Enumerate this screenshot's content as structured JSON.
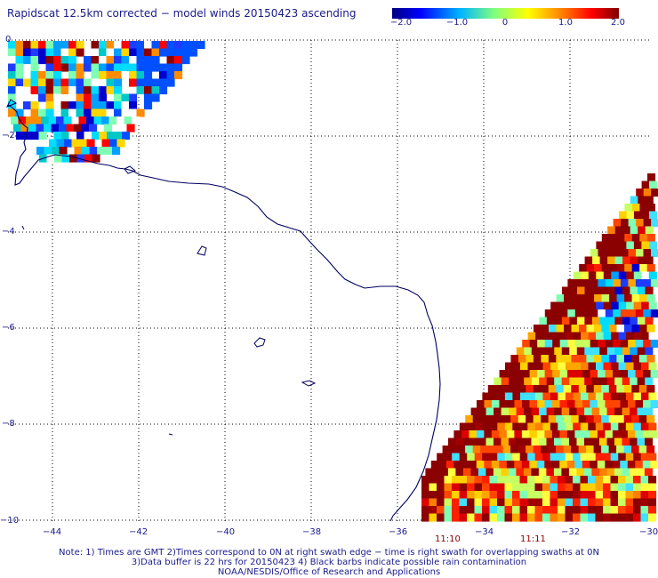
{
  "title": "Rapidscat 12.5km corrected − model winds 20150423 ascending",
  "colorbar": {
    "ticks": [
      "−2.0",
      "−1.0",
      "0",
      "1.0",
      "2.0"
    ],
    "range": [
      -2.0,
      2.0
    ],
    "colors": [
      "#00007f",
      "#0000ff",
      "#00b4ff",
      "#7fff7f",
      "#ffff00",
      "#ff7f00",
      "#ff0000",
      "#7f0000"
    ]
  },
  "axes": {
    "x_ticks": [
      "−44",
      "−42",
      "−40",
      "−38",
      "−36",
      "−34",
      "−32",
      "−30"
    ],
    "y_ticks": [
      "0",
      "−2",
      "−4",
      "−6",
      "−8",
      "−10"
    ],
    "lon_range": [
      -45,
      -30
    ],
    "lat_range": [
      -10,
      0
    ],
    "grid": true
  },
  "time_labels": [
    "11:10",
    "11:11"
  ],
  "notes": [
    "Note: 1) Times are GMT 2)Times correspond to 0N at right swath edge − time is right swath for overlapping swaths at 0N",
    "3)Data buffer is 22 hrs for 20150423 4) Black barbs indicate possible rain contamination",
    "NOAA/NESDIS/Office of Research and Applications"
  ],
  "colors": {
    "coastline": "#000060",
    "grid": "#000000",
    "text": "#1a1a8a"
  }
}
